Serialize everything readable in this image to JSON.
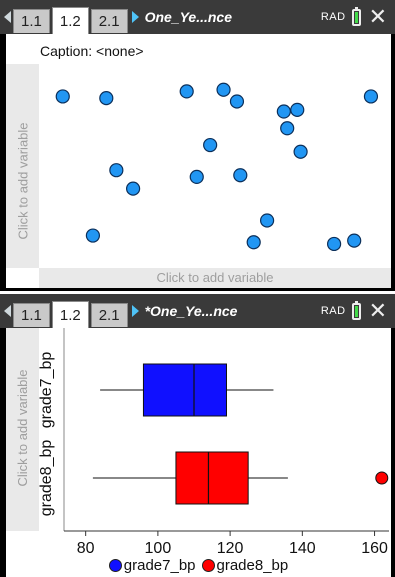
{
  "screens": [
    {
      "tabs": [
        "1.1",
        "1.2",
        "2.1"
      ],
      "active_tab": 1,
      "doc_title": "One_Ye...nce",
      "mode": "RAD"
    },
    {
      "tabs": [
        "1.1",
        "1.2",
        "2.1"
      ],
      "active_tab": 1,
      "doc_title": "*One_Ye...nce",
      "mode": "RAD"
    }
  ],
  "dotplot": {
    "caption": "Caption: <none>",
    "y_placeholder": "Click to add variable",
    "x_placeholder": "Click to add variable",
    "point_color": "#2196f3",
    "points": [
      [
        0.05,
        0.64
      ],
      [
        0.18,
        0.63
      ],
      [
        0.42,
        0.67
      ],
      [
        0.53,
        0.68
      ],
      [
        0.57,
        0.61
      ],
      [
        0.71,
        0.55
      ],
      [
        0.75,
        0.56
      ],
      [
        0.72,
        0.45
      ],
      [
        0.97,
        0.64
      ],
      [
        0.49,
        0.35
      ],
      [
        0.21,
        0.2
      ],
      [
        0.26,
        0.09
      ],
      [
        0.45,
        0.16
      ],
      [
        0.58,
        0.17
      ],
      [
        0.76,
        0.31
      ],
      [
        0.14,
        -0.19
      ],
      [
        0.66,
        -0.1
      ],
      [
        0.62,
        -0.23
      ],
      [
        0.86,
        -0.24
      ],
      [
        0.92,
        -0.22
      ]
    ]
  },
  "chart_data": {
    "type": "boxplot",
    "y_placeholder": "Click to add variable",
    "xlim": [
      74,
      164
    ],
    "xticks": [
      80,
      100,
      120,
      140,
      160
    ],
    "series": [
      {
        "name": "grade7_bp",
        "color": "#1010ff",
        "whisker_low": 84,
        "q1": 96,
        "median": 110,
        "q3": 119,
        "whisker_high": 132,
        "outliers": []
      },
      {
        "name": "grade8_bp",
        "color": "#ff0000",
        "whisker_low": 82,
        "q1": 105,
        "median": 114,
        "q3": 125,
        "whisker_high": 136,
        "outliers": [
          162
        ]
      }
    ],
    "legend": [
      "grade7_bp",
      "grade8_bp"
    ]
  }
}
